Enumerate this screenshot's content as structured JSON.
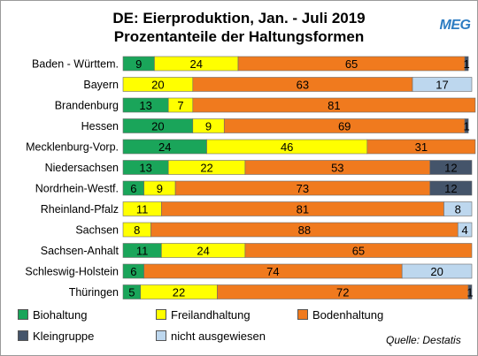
{
  "title": {
    "line1": "DE: Eierproduktion, Jan. - Juli 2019",
    "line2": "Prozentanteile der Haltungsformen"
  },
  "logo": {
    "text": "MEG",
    "color": "#2c7cc2"
  },
  "source": "Quelle: Destatis",
  "chart_data": {
    "type": "bar",
    "orientation": "horizontal",
    "stacked": true,
    "xlim": [
      0,
      100
    ],
    "title": "DE: Eierproduktion, Jan. - Juli 2019 / Prozentanteile der Haltungsformen",
    "legend_position": "bottom",
    "grid": false,
    "categories": [
      "Baden - Württem.",
      "Bayern",
      "Brandenburg",
      "Hessen",
      "Mecklenburg-Vorp.",
      "Niedersachsen",
      "Nordrhein-Westf.",
      "Rheinland-Pfalz",
      "Sachsen",
      "Sachsen-Anhalt",
      "Schleswig-Holstein",
      "Thüringen"
    ],
    "series": [
      {
        "name": "Biohaltung",
        "color": "#1aa55a",
        "values": [
          9,
          null,
          13,
          20,
          24,
          13,
          6,
          null,
          null,
          11,
          6,
          5
        ]
      },
      {
        "name": "Freilandhaltung",
        "color": "#ffff00",
        "values": [
          24,
          20,
          7,
          9,
          46,
          22,
          9,
          11,
          8,
          24,
          null,
          22
        ]
      },
      {
        "name": "Bodenhaltung",
        "color": "#f07a1e",
        "values": [
          65,
          63,
          81,
          69,
          31,
          53,
          73,
          81,
          88,
          65,
          74,
          72
        ]
      },
      {
        "name": "Kleingruppe",
        "color": "#44546a",
        "values": [
          1,
          null,
          null,
          1,
          null,
          12,
          12,
          null,
          null,
          null,
          null,
          1
        ]
      },
      {
        "name": "nicht ausgewiesen",
        "color": "#bdd7ee",
        "values": [
          null,
          17,
          null,
          null,
          null,
          null,
          null,
          8,
          4,
          null,
          20,
          null
        ]
      }
    ]
  }
}
